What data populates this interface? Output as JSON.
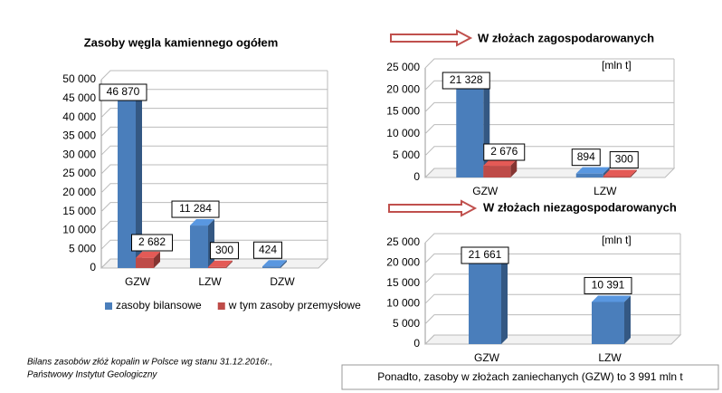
{
  "chart_data": [
    {
      "type": "bar3d",
      "title": "Zasoby węgla kamiennego ogółem",
      "categories": [
        "GZW",
        "LZW",
        "DZW"
      ],
      "series": [
        {
          "name": "zasoby bilansowe",
          "color": "#4a7ebb",
          "values": [
            46870,
            11284,
            424
          ],
          "value_labels": [
            "46 870",
            "11 284",
            "424"
          ]
        },
        {
          "name": "w tym zasoby przemysłowe",
          "color": "#be4b48",
          "values": [
            2682,
            300,
            null
          ],
          "value_labels": [
            "2 682",
            "300",
            null
          ]
        }
      ],
      "ylim": [
        0,
        50000
      ],
      "yticks": [
        0,
        {
          "value": 5000,
          "label": "5 000"
        },
        {
          "value": 10000,
          "label": "10 000"
        },
        {
          "value": 15000,
          "label": "15 000"
        },
        {
          "value": 20000,
          "label": "20 000"
        },
        {
          "value": 25000,
          "label": "25 000"
        },
        {
          "value": 30000,
          "label": "30 000"
        },
        {
          "value": 35000,
          "label": "35 000"
        },
        {
          "value": 40000,
          "label": "40 000"
        },
        {
          "value": 45000,
          "label": "45 000"
        },
        {
          "value": 50000,
          "label": "50 000"
        }
      ],
      "grid": true,
      "legend": "bottom"
    },
    {
      "type": "bar3d",
      "title": "W złożach zagospodarowanych",
      "unit": "[mln t]",
      "categories": [
        "GZW",
        "LZW"
      ],
      "series": [
        {
          "color": "#4a7ebb",
          "values": [
            21328,
            894
          ],
          "value_labels": [
            "21 328",
            "894"
          ]
        },
        {
          "color": "#be4b48",
          "values": [
            2676,
            300
          ],
          "value_labels": [
            "2 676",
            "300"
          ]
        }
      ],
      "ylim": [
        0,
        25000
      ],
      "yticks": [
        0,
        {
          "value": 5000,
          "label": "5 000"
        },
        {
          "value": 10000,
          "label": "10 000"
        },
        {
          "value": 15000,
          "label": "15 000"
        },
        {
          "value": 20000,
          "label": "20 000"
        },
        {
          "value": 25000,
          "label": "25 000"
        }
      ],
      "grid": true
    },
    {
      "type": "bar3d",
      "title": "W złożach niezagospodarowanych",
      "unit": "[mln t]",
      "categories": [
        "GZW",
        "LZW"
      ],
      "color": "#4a7ebb",
      "values": [
        21661,
        10391
      ],
      "value_labels": [
        "21 661",
        "10 391"
      ],
      "ylim": [
        0,
        25000
      ],
      "yticks": [
        0,
        {
          "value": 5000,
          "label": "5 000"
        },
        {
          "value": 10000,
          "label": "10 000"
        },
        {
          "value": 15000,
          "label": "15 000"
        },
        {
          "value": 20000,
          "label": "20 000"
        },
        {
          "value": 25000,
          "label": "25 000"
        }
      ],
      "grid": true
    }
  ],
  "source": [
    "Bilans zasobów złóż kopalin w Polsce  wg stanu 31.12.2016r.,",
    "Państwowy Instytut Geologiczny"
  ],
  "note": "Ponadto, zasoby w złożach zaniechanych (GZW) to 3 991 mln t"
}
